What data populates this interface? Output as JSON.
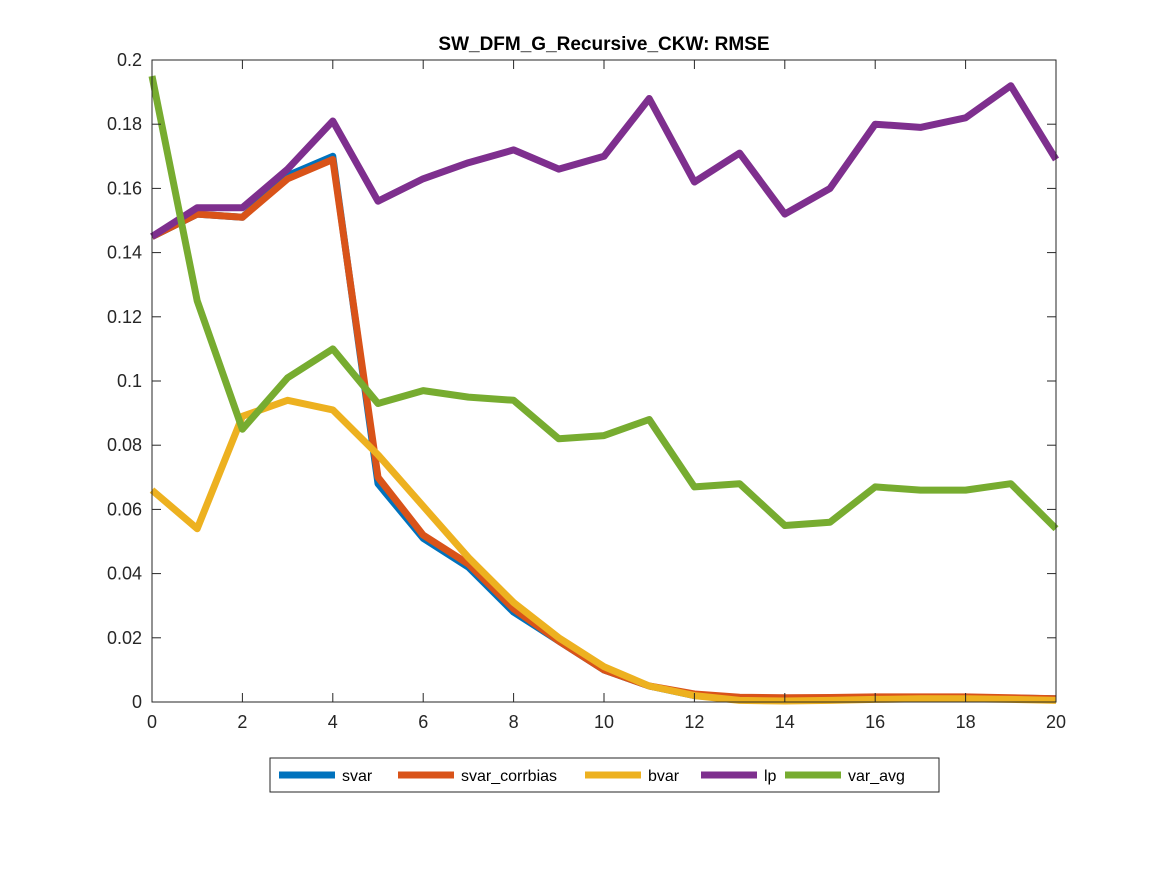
{
  "chart_data": {
    "type": "line",
    "title": "SW_DFM_G_Recursive_CKW: RMSE",
    "xlabel": "",
    "ylabel": "",
    "xlim": [
      0,
      20
    ],
    "ylim": [
      0,
      0.2
    ],
    "x": [
      0,
      1,
      2,
      3,
      4,
      5,
      6,
      7,
      8,
      9,
      10,
      11,
      12,
      13,
      14,
      15,
      16,
      17,
      18,
      19,
      20
    ],
    "x_ticks": [
      0,
      2,
      4,
      6,
      8,
      10,
      12,
      14,
      16,
      18,
      20
    ],
    "x_tick_labels": [
      "0",
      "2",
      "4",
      "6",
      "8",
      "10",
      "12",
      "14",
      "16",
      "18",
      "20"
    ],
    "y_ticks": [
      0,
      0.02,
      0.04,
      0.06,
      0.08,
      0.1,
      0.12,
      0.14,
      0.16,
      0.18,
      0.2
    ],
    "y_tick_labels": [
      "0",
      "0.02",
      "0.04",
      "0.06",
      "0.08",
      "0.1",
      "0.12",
      "0.14",
      "0.16",
      "0.18",
      "0.2"
    ],
    "grid": false,
    "legend_position": "bottom-center",
    "series": [
      {
        "name": "svar",
        "color": "#0072BD",
        "values": [
          0.145,
          0.152,
          0.151,
          0.164,
          0.17,
          0.068,
          0.051,
          0.042,
          0.028,
          0.019,
          0.01,
          0.005,
          0.002,
          0.001,
          0.001,
          0.0012,
          0.0014,
          0.0014,
          0.0014,
          0.0012,
          0.001
        ]
      },
      {
        "name": "svar_corrbias",
        "color": "#D95319",
        "values": [
          0.145,
          0.152,
          0.151,
          0.163,
          0.169,
          0.07,
          0.052,
          0.043,
          0.029,
          0.019,
          0.01,
          0.005,
          0.0025,
          0.0015,
          0.0013,
          0.0014,
          0.0016,
          0.0016,
          0.0016,
          0.0013,
          0.001
        ]
      },
      {
        "name": "bvar",
        "color": "#EDB120",
        "values": [
          0.066,
          0.054,
          0.089,
          0.094,
          0.091,
          0.077,
          0.061,
          0.045,
          0.031,
          0.02,
          0.011,
          0.005,
          0.002,
          0.0005,
          0.0003,
          0.0005,
          0.0008,
          0.001,
          0.001,
          0.0008,
          0.0005
        ]
      },
      {
        "name": "lp",
        "color": "#7E2F8E",
        "values": [
          0.145,
          0.154,
          0.154,
          0.166,
          0.181,
          0.156,
          0.163,
          0.168,
          0.172,
          0.166,
          0.17,
          0.188,
          0.162,
          0.171,
          0.152,
          0.16,
          0.18,
          0.179,
          0.182,
          0.192,
          0.169
        ]
      },
      {
        "name": "var_avg",
        "color": "#77AC30",
        "values": [
          0.195,
          0.125,
          0.085,
          0.101,
          0.11,
          0.093,
          0.097,
          0.095,
          0.094,
          0.082,
          0.083,
          0.088,
          0.067,
          0.068,
          0.055,
          0.056,
          0.067,
          0.066,
          0.066,
          0.068,
          0.054
        ]
      }
    ]
  }
}
